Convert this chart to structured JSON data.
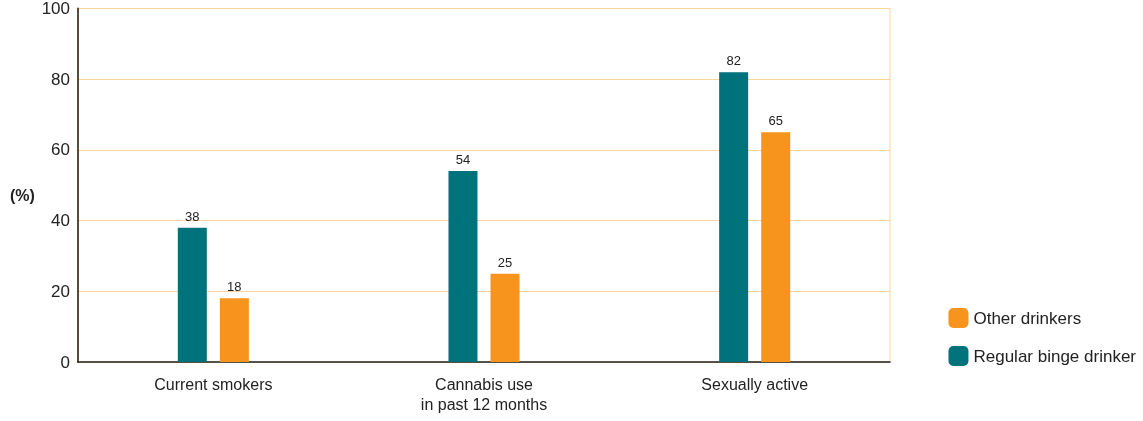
{
  "chart_data": {
    "type": "bar",
    "ylabel": "(%)",
    "categories": [
      "Current smokers",
      "Cannabis use\nin past 12 months",
      "Sexually active"
    ],
    "series": [
      {
        "name": "Regular binge drinker",
        "color": "#00727c",
        "values": [
          38,
          54,
          82
        ]
      },
      {
        "name": "Other drinkers",
        "color": "#f7941e",
        "values": [
          18,
          25,
          65
        ]
      }
    ],
    "ylim": [
      0,
      100
    ],
    "yticks": [
      0,
      20,
      40,
      60,
      80,
      100
    ],
    "grid": "y",
    "legend": "bottom right",
    "data_labels": true
  }
}
